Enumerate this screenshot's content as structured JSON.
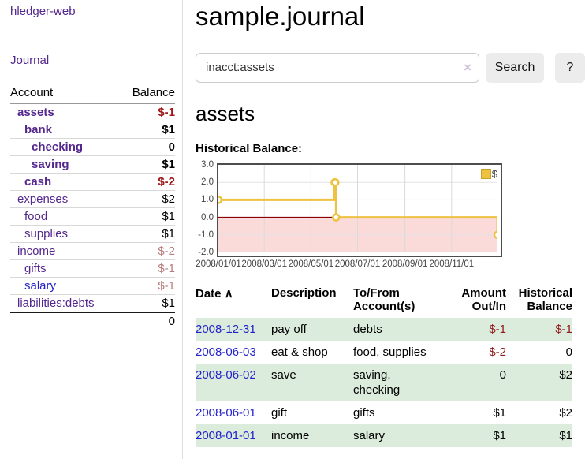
{
  "sidebar": {
    "app_title": "hledger-web",
    "journal_label": "Journal",
    "accounts_table": {
      "account_header": "Account",
      "balance_header": "Balance",
      "rows": [
        {
          "name": "assets",
          "indent": 1,
          "bold": true,
          "balance": "$-1"
        },
        {
          "name": "bank",
          "indent": 2,
          "bold": true,
          "balance": "$1"
        },
        {
          "name": "checking",
          "indent": 3,
          "bold": true,
          "balance": "0"
        },
        {
          "name": "saving",
          "indent": 3,
          "bold": true,
          "balance": "$1"
        },
        {
          "name": "cash",
          "indent": 2,
          "bold": true,
          "balance": "$-2"
        },
        {
          "name": "expenses",
          "indent": 1,
          "bold": false,
          "balance": "$2"
        },
        {
          "name": "food",
          "indent": 2,
          "bold": false,
          "balance": "$1"
        },
        {
          "name": "supplies",
          "indent": 2,
          "bold": false,
          "balance": "$1"
        },
        {
          "name": "income",
          "indent": 1,
          "bold": false,
          "balance": "$-2"
        },
        {
          "name": "gifts",
          "indent": 2,
          "bold": false,
          "balance": "$-1"
        },
        {
          "name": "salary",
          "indent": 2,
          "bold": false,
          "balance": "$-1",
          "link_style": "unvisited"
        },
        {
          "name": "liabilities:debts",
          "indent": 1,
          "bold": false,
          "balance": "$1"
        }
      ],
      "total": "0"
    }
  },
  "header": {
    "title": "sample.journal"
  },
  "search": {
    "value": "inacct:assets",
    "clear_icon": "×",
    "button_label": "Search",
    "help_label": "?"
  },
  "account_page": {
    "title": "assets",
    "chart_label": "Historical Balance:"
  },
  "chart_data": {
    "type": "line",
    "step": true,
    "title": "Historical Balance",
    "series": [
      {
        "name": "$",
        "color": "#edc240",
        "points": [
          [
            "2008-01-01",
            1
          ],
          [
            "2008-06-01",
            2
          ],
          [
            "2008-06-02",
            2
          ],
          [
            "2008-06-03",
            0
          ],
          [
            "2008-12-31",
            -1
          ]
        ]
      }
    ],
    "x_range": [
      "2008-01-01",
      "2008-12-31"
    ],
    "ylim": [
      -2,
      3
    ],
    "y_ticks": [
      3.0,
      2.0,
      1.0,
      0.0,
      -1.0,
      -2.0
    ],
    "x_ticks": [
      "2008/01/01",
      "2008/03/01",
      "2008/05/01",
      "2008/07/01",
      "2008/09/01",
      "2008/11/01"
    ],
    "legend_position": "top-right",
    "grid": true,
    "negative_region_color": "#fbdada",
    "zero_line_color": "#8b0000"
  },
  "register": {
    "headers": {
      "date": "Date",
      "sort_icon": "∧",
      "description": "Description",
      "accounts": "To/From Account(s)",
      "amount": "Amount Out/In",
      "balance": "Historical Balance"
    },
    "rows": [
      {
        "date": "2008-12-31",
        "description": "pay off",
        "accounts": "debts",
        "amount": "$-1",
        "balance": "$-1"
      },
      {
        "date": "2008-06-03",
        "description": "eat & shop",
        "accounts": "food, supplies",
        "amount": "$-2",
        "balance": "0"
      },
      {
        "date": "2008-06-02",
        "description": "save",
        "accounts": "saving, checking",
        "amount": "0",
        "balance": "$2"
      },
      {
        "date": "2008-06-01",
        "description": "gift",
        "accounts": "gifts",
        "amount": "$1",
        "balance": "$2"
      },
      {
        "date": "2008-01-01",
        "description": "income",
        "accounts": "salary",
        "amount": "$1",
        "balance": "$1"
      }
    ]
  }
}
